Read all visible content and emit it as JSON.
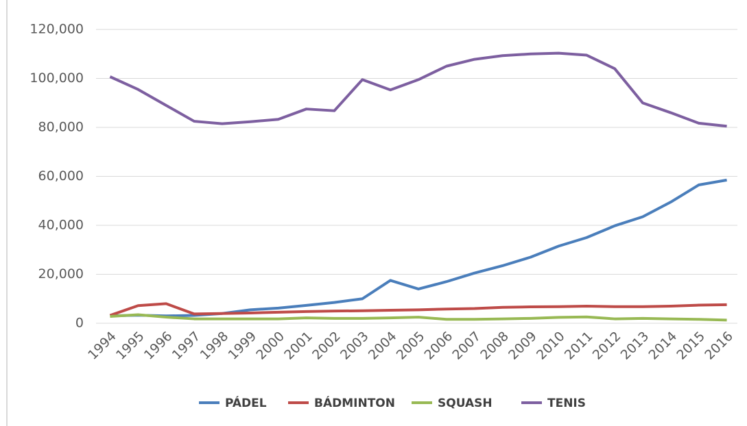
{
  "chart_data": {
    "type": "line",
    "categories": [
      "1994",
      "1995",
      "1996",
      "1997",
      "1998",
      "1999",
      "2000",
      "2001",
      "2002",
      "2003",
      "2004",
      "2005",
      "2006",
      "2007",
      "2008",
      "2009",
      "2010",
      "2011",
      "2012",
      "2013",
      "2014",
      "2015",
      "2016"
    ],
    "series": [
      {
        "name": "PÁDEL",
        "color": "#4a7ebb",
        "values": [
          3000,
          3300,
          3000,
          3200,
          4000,
          5500,
          6200,
          7300,
          8500,
          10000,
          17500,
          14000,
          17000,
          20500,
          23500,
          27000,
          31500,
          35000,
          39800,
          43500,
          49500,
          56500,
          58500
        ]
      },
      {
        "name": "BÁDMINTON",
        "color": "#be4b48",
        "values": [
          3200,
          7200,
          8000,
          3800,
          4000,
          4200,
          4500,
          4800,
          5000,
          5100,
          5300,
          5500,
          5800,
          6000,
          6500,
          6700,
          6800,
          7000,
          6800,
          6800,
          7000,
          7400,
          7600
        ]
      },
      {
        "name": "SQUASH",
        "color": "#98b954",
        "values": [
          2800,
          3500,
          2500,
          1800,
          1800,
          1800,
          1800,
          2200,
          2000,
          2000,
          2200,
          2500,
          1600,
          1600,
          1800,
          2000,
          2400,
          2600,
          1800,
          2000,
          1800,
          1600,
          1300
        ]
      },
      {
        "name": "TENIS",
        "color": "#7d5fa0",
        "values": [
          100700,
          95500,
          89000,
          82500,
          81500,
          82300,
          83300,
          87500,
          86800,
          99500,
          95300,
          99500,
          105000,
          107800,
          109300,
          110000,
          110300,
          109500,
          104000,
          90000,
          86000,
          81700,
          80500
        ]
      }
    ],
    "ylim": [
      0,
      120000
    ],
    "yticks": [
      0,
      {
        "value": 20000,
        "label": "20,000"
      },
      {
        "value": 40000,
        "label": "40,000"
      },
      {
        "value": 60000,
        "label": "60,000"
      },
      {
        "value": 80000,
        "label": "80,000"
      },
      {
        "value": 100000,
        "label": "100,000"
      },
      {
        "value": 120000,
        "label": "120,000"
      }
    ],
    "grid": true
  }
}
